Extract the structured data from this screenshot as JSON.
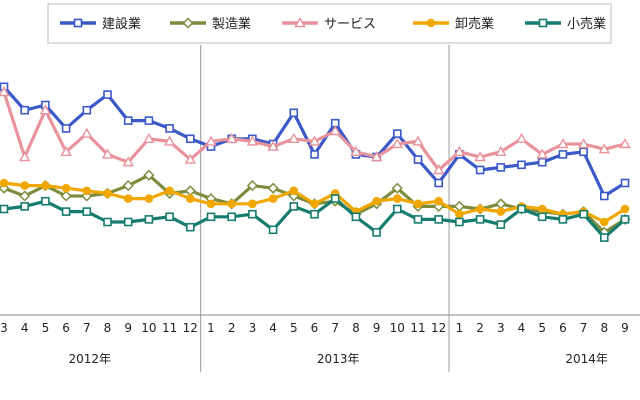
{
  "chart_data": {
    "type": "line",
    "title": "",
    "xlabel": "",
    "ylabel": "",
    "grid": false,
    "legend_position": "top",
    "ylim": [
      0,
      100
    ],
    "month_labels": [
      "3",
      "4",
      "5",
      "6",
      "7",
      "8",
      "9",
      "10",
      "11",
      "12",
      "1",
      "2",
      "3",
      "4",
      "5",
      "6",
      "7",
      "8",
      "9",
      "10",
      "11",
      "12",
      "1",
      "2",
      "3",
      "4",
      "5",
      "6",
      "7",
      "8",
      "9"
    ],
    "year_labels": [
      "2012年",
      "2013年",
      "2014年"
    ],
    "series": [
      {
        "name": "建設業",
        "color": "#3a58c8",
        "marker": "square",
        "values": [
          82,
          73,
          75,
          66,
          73,
          79,
          69,
          69,
          66,
          62,
          59,
          62,
          62,
          60,
          72,
          56,
          68,
          56,
          55,
          64,
          54,
          45,
          56,
          50,
          51,
          52,
          53,
          56,
          57,
          40,
          45
        ]
      },
      {
        "name": "製造業",
        "color": "#7d8c3e",
        "marker": "diamond",
        "values": [
          43,
          40,
          44,
          40,
          40,
          41,
          44,
          48,
          41,
          42,
          39,
          37,
          44,
          43,
          40,
          37,
          38,
          33,
          37,
          43,
          36,
          36,
          36,
          35,
          37,
          35,
          34,
          33,
          34,
          26,
          31
        ]
      },
      {
        "name": "サービス",
        "color": "#e8929c",
        "marker": "triangle",
        "values": [
          80,
          55,
          73,
          57,
          64,
          56,
          53,
          62,
          61,
          54,
          61,
          62,
          61,
          59,
          62,
          61,
          65,
          57,
          55,
          60,
          61,
          50,
          57,
          55,
          57,
          62,
          56,
          60,
          60,
          58,
          60
        ]
      },
      {
        "name": "卸売業",
        "color": "#f0a800",
        "marker": "circle",
        "values": [
          45,
          44,
          44,
          43,
          42,
          41,
          39,
          39,
          42,
          39,
          37,
          37,
          37,
          39,
          42,
          37,
          41,
          34,
          38,
          39,
          37,
          38,
          33,
          35,
          34,
          36,
          35,
          33,
          34,
          30,
          35
        ]
      },
      {
        "name": "小売業",
        "color": "#167c6e",
        "marker": "square",
        "values": [
          35,
          36,
          38,
          34,
          34,
          30,
          30,
          31,
          32,
          28,
          32,
          32,
          33,
          27,
          36,
          33,
          39,
          32,
          26,
          35,
          31,
          31,
          30,
          31,
          29,
          35,
          32,
          31,
          33,
          24,
          31
        ]
      }
    ]
  }
}
